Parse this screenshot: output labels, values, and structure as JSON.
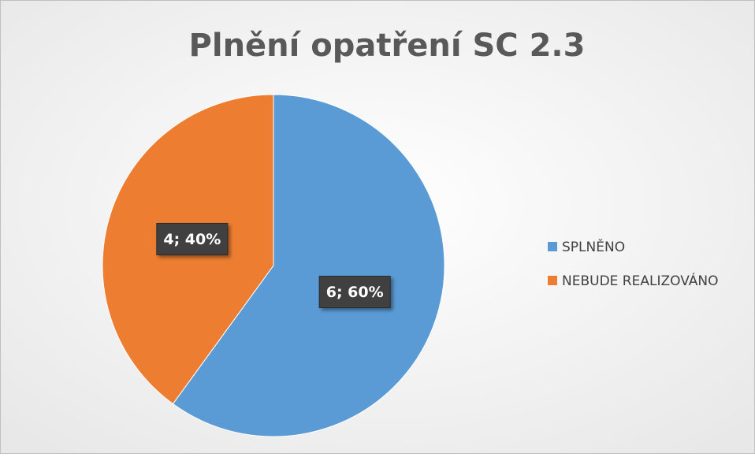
{
  "chart_data": {
    "type": "pie",
    "title": "Plnění opatření SC 2.3",
    "categories": [
      "SPLNĚNO",
      "NEBUDE REALIZOVÁNO"
    ],
    "values": [
      6,
      4
    ],
    "value_labels": [
      "6; 60%",
      "4; 40%"
    ],
    "colors": [
      "#5b9bd5",
      "#ed7d31"
    ],
    "legend": "right"
  }
}
